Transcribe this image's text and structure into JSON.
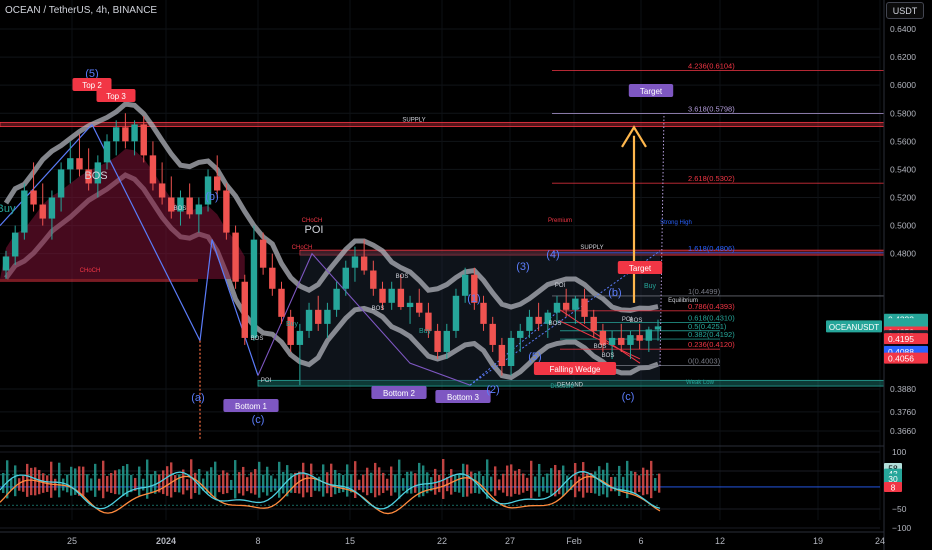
{
  "header": {
    "title": "OCEAN / TetherUS, 4h, BINANCE",
    "unit_button": "USDT"
  },
  "chart_data": {
    "type": "candlestick",
    "price_axis": {
      "ticks": [
        "0.6400",
        "0.6200",
        "0.6000",
        "0.5800",
        "0.5600",
        "0.5400",
        "0.5200",
        "0.5000",
        "0.4800",
        "0.3880",
        "0.3760",
        "0.3660"
      ],
      "range": [
        0.352,
        0.652
      ],
      "labels": [
        {
          "text": "0.4333",
          "value": 0.4333,
          "color": "#26a69a"
        },
        {
          "text": "0.4301",
          "value": 0.4301,
          "color": "#26a69a"
        },
        {
          "text": "0.4282",
          "value": 0.4282,
          "color": "#26a69a"
        },
        {
          "text": "01:04:55",
          "value": 0.4262,
          "color": "#26a69a"
        },
        {
          "text": "0.4252",
          "value": 0.4242,
          "color": "#f23645"
        },
        {
          "text": "0.4263",
          "value": 0.4216,
          "color": "#1e222d"
        },
        {
          "text": "0.4195",
          "value": 0.4195,
          "color": "#f23645"
        },
        {
          "text": "0.4088",
          "value": 0.4104,
          "color": "#2962ff"
        },
        {
          "text": "0.4056",
          "value": 0.4056,
          "color": "#f23645"
        }
      ],
      "symbol_tag": "OCEANUSDT"
    },
    "time_axis": {
      "labels": [
        "25",
        "2024",
        "8",
        "15",
        "22",
        "27",
        "Feb",
        "6",
        "12",
        "19",
        "24"
      ]
    },
    "candles": [
      {
        "x": 0.468,
        "o": 0.468,
        "h": 0.482,
        "l": 0.462,
        "c": 0.478
      },
      {
        "x": 0.478,
        "o": 0.478,
        "h": 0.5,
        "l": 0.472,
        "c": 0.495
      },
      {
        "x": 0.495,
        "o": 0.495,
        "h": 0.53,
        "l": 0.49,
        "c": 0.525
      },
      {
        "x": 0.525,
        "o": 0.525,
        "h": 0.545,
        "l": 0.51,
        "c": 0.515
      },
      {
        "x": 0.515,
        "o": 0.515,
        "h": 0.53,
        "l": 0.5,
        "c": 0.505
      },
      {
        "x": 0.505,
        "o": 0.505,
        "h": 0.525,
        "l": 0.49,
        "c": 0.52
      },
      {
        "x": 0.52,
        "o": 0.52,
        "h": 0.545,
        "l": 0.51,
        "c": 0.54
      },
      {
        "x": 0.54,
        "o": 0.54,
        "h": 0.56,
        "l": 0.53,
        "c": 0.548
      },
      {
        "x": 0.548,
        "o": 0.548,
        "h": 0.565,
        "l": 0.535,
        "c": 0.54
      },
      {
        "x": 0.54,
        "o": 0.54,
        "h": 0.555,
        "l": 0.525,
        "c": 0.53
      },
      {
        "x": 0.53,
        "o": 0.53,
        "h": 0.55,
        "l": 0.52,
        "c": 0.545
      },
      {
        "x": 0.545,
        "o": 0.545,
        "h": 0.565,
        "l": 0.54,
        "c": 0.56
      },
      {
        "x": 0.56,
        "o": 0.56,
        "h": 0.575,
        "l": 0.55,
        "c": 0.57
      },
      {
        "x": 0.57,
        "o": 0.57,
        "h": 0.58,
        "l": 0.555,
        "c": 0.56
      },
      {
        "x": 0.56,
        "o": 0.56,
        "h": 0.575,
        "l": 0.55,
        "c": 0.572
      },
      {
        "x": 0.572,
        "o": 0.572,
        "h": 0.578,
        "l": 0.545,
        "c": 0.55
      },
      {
        "x": 0.55,
        "o": 0.55,
        "h": 0.56,
        "l": 0.525,
        "c": 0.53
      },
      {
        "x": 0.53,
        "o": 0.53,
        "h": 0.545,
        "l": 0.515,
        "c": 0.52
      },
      {
        "x": 0.52,
        "o": 0.52,
        "h": 0.535,
        "l": 0.505,
        "c": 0.51
      },
      {
        "x": 0.51,
        "o": 0.51,
        "h": 0.525,
        "l": 0.5,
        "c": 0.52
      },
      {
        "x": 0.52,
        "o": 0.52,
        "h": 0.53,
        "l": 0.505,
        "c": 0.508
      },
      {
        "x": 0.508,
        "o": 0.508,
        "h": 0.52,
        "l": 0.495,
        "c": 0.515
      },
      {
        "x": 0.515,
        "o": 0.515,
        "h": 0.54,
        "l": 0.51,
        "c": 0.535
      },
      {
        "x": 0.535,
        "o": 0.535,
        "h": 0.55,
        "l": 0.52,
        "c": 0.525
      },
      {
        "x": 0.525,
        "o": 0.525,
        "h": 0.53,
        "l": 0.49,
        "c": 0.495
      },
      {
        "x": 0.495,
        "o": 0.495,
        "h": 0.5,
        "l": 0.455,
        "c": 0.46
      },
      {
        "x": 0.46,
        "o": 0.46,
        "h": 0.465,
        "l": 0.415,
        "c": 0.42
      },
      {
        "x": 0.42,
        "o": 0.42,
        "h": 0.5,
        "l": 0.418,
        "c": 0.49
      },
      {
        "x": 0.49,
        "o": 0.49,
        "h": 0.495,
        "l": 0.465,
        "c": 0.47
      },
      {
        "x": 0.47,
        "o": 0.47,
        "h": 0.48,
        "l": 0.45,
        "c": 0.455
      },
      {
        "x": 0.455,
        "o": 0.455,
        "h": 0.46,
        "l": 0.43,
        "c": 0.435
      },
      {
        "x": 0.435,
        "o": 0.435,
        "h": 0.44,
        "l": 0.41,
        "c": 0.415
      },
      {
        "x": 0.415,
        "o": 0.415,
        "h": 0.43,
        "l": 0.39,
        "c": 0.425
      },
      {
        "x": 0.425,
        "o": 0.425,
        "h": 0.445,
        "l": 0.42,
        "c": 0.44
      },
      {
        "x": 0.44,
        "o": 0.44,
        "h": 0.45,
        "l": 0.425,
        "c": 0.43
      },
      {
        "x": 0.43,
        "o": 0.43,
        "h": 0.445,
        "l": 0.42,
        "c": 0.44
      },
      {
        "x": 0.44,
        "o": 0.44,
        "h": 0.46,
        "l": 0.435,
        "c": 0.455
      },
      {
        "x": 0.455,
        "o": 0.455,
        "h": 0.475,
        "l": 0.45,
        "c": 0.47
      },
      {
        "x": 0.47,
        "o": 0.47,
        "h": 0.485,
        "l": 0.46,
        "c": 0.478
      },
      {
        "x": 0.478,
        "o": 0.478,
        "h": 0.49,
        "l": 0.465,
        "c": 0.468
      },
      {
        "x": 0.468,
        "o": 0.468,
        "h": 0.475,
        "l": 0.45,
        "c": 0.455
      },
      {
        "x": 0.455,
        "o": 0.455,
        "h": 0.46,
        "l": 0.44,
        "c": 0.445
      },
      {
        "x": 0.445,
        "o": 0.445,
        "h": 0.46,
        "l": 0.44,
        "c": 0.455
      },
      {
        "x": 0.455,
        "o": 0.455,
        "h": 0.465,
        "l": 0.44,
        "c": 0.442
      },
      {
        "x": 0.442,
        "o": 0.442,
        "h": 0.45,
        "l": 0.43,
        "c": 0.445
      },
      {
        "x": 0.445,
        "o": 0.445,
        "h": 0.455,
        "l": 0.435,
        "c": 0.438
      },
      {
        "x": 0.438,
        "o": 0.438,
        "h": 0.445,
        "l": 0.42,
        "c": 0.425
      },
      {
        "x": 0.425,
        "o": 0.425,
        "h": 0.43,
        "l": 0.405,
        "c": 0.41
      },
      {
        "x": 0.41,
        "o": 0.41,
        "h": 0.43,
        "l": 0.405,
        "c": 0.425
      },
      {
        "x": 0.425,
        "o": 0.425,
        "h": 0.455,
        "l": 0.42,
        "c": 0.45
      },
      {
        "x": 0.45,
        "o": 0.45,
        "h": 0.47,
        "l": 0.445,
        "c": 0.465
      },
      {
        "x": 0.465,
        "o": 0.465,
        "h": 0.47,
        "l": 0.44,
        "c": 0.445
      },
      {
        "x": 0.445,
        "o": 0.445,
        "h": 0.45,
        "l": 0.425,
        "c": 0.43
      },
      {
        "x": 0.43,
        "o": 0.43,
        "h": 0.435,
        "l": 0.41,
        "c": 0.415
      },
      {
        "x": 0.415,
        "o": 0.415,
        "h": 0.42,
        "l": 0.395,
        "c": 0.4
      },
      {
        "x": 0.4,
        "o": 0.4,
        "h": 0.425,
        "l": 0.395,
        "c": 0.42
      },
      {
        "x": 0.42,
        "o": 0.42,
        "h": 0.43,
        "l": 0.41,
        "c": 0.425
      },
      {
        "x": 0.425,
        "o": 0.425,
        "h": 0.44,
        "l": 0.42,
        "c": 0.435
      },
      {
        "x": 0.435,
        "o": 0.435,
        "h": 0.445,
        "l": 0.425,
        "c": 0.43
      },
      {
        "x": 0.43,
        "o": 0.43,
        "h": 0.44,
        "l": 0.42,
        "c": 0.438
      },
      {
        "x": 0.438,
        "o": 0.438,
        "h": 0.45,
        "l": 0.43,
        "c": 0.445
      },
      {
        "x": 0.445,
        "o": 0.445,
        "h": 0.455,
        "l": 0.435,
        "c": 0.44
      },
      {
        "x": 0.44,
        "o": 0.44,
        "h": 0.45,
        "l": 0.43,
        "c": 0.448
      },
      {
        "x": 0.448,
        "o": 0.448,
        "h": 0.455,
        "l": 0.43,
        "c": 0.435
      },
      {
        "x": 0.435,
        "o": 0.435,
        "h": 0.44,
        "l": 0.42,
        "c": 0.425
      },
      {
        "x": 0.425,
        "o": 0.425,
        "h": 0.43,
        "l": 0.41,
        "c": 0.415
      },
      {
        "x": 0.415,
        "o": 0.415,
        "h": 0.425,
        "l": 0.405,
        "c": 0.42
      },
      {
        "x": 0.42,
        "o": 0.42,
        "h": 0.43,
        "l": 0.41,
        "c": 0.415
      },
      {
        "x": 0.415,
        "o": 0.415,
        "h": 0.425,
        "l": 0.405,
        "c": 0.422
      },
      {
        "x": 0.422,
        "o": 0.422,
        "h": 0.43,
        "l": 0.412,
        "c": 0.418
      },
      {
        "x": 0.418,
        "o": 0.418,
        "h": 0.428,
        "l": 0.41,
        "c": 0.426
      },
      {
        "x": 0.426,
        "o": 0.426,
        "h": 0.433,
        "l": 0.418,
        "c": 0.4282
      }
    ],
    "resistance_lines": [
      {
        "label": "4.236(0.6104)",
        "value": 0.6104,
        "color": "#f23645"
      },
      {
        "label": "3.618(0.5798)",
        "value": 0.5798,
        "color": "#b39ddb"
      },
      {
        "label": "2.618(0.5302)",
        "value": 0.5302,
        "color": "#f23645"
      },
      {
        "label": "1.618(0.4806)",
        "value": 0.4806,
        "color": "#2962ff"
      },
      {
        "label": "1(0.4499)",
        "value": 0.4499,
        "color": "#787b86"
      },
      {
        "label": "0.786(0.4393)",
        "value": 0.4393,
        "color": "#f23645"
      },
      {
        "label": "0.618(0.4310)",
        "value": 0.431,
        "color": "#26a69a"
      },
      {
        "label": "0.5(0.4251)",
        "value": 0.4251,
        "color": "#26a69a"
      },
      {
        "label": "0.382(0.4192)",
        "value": 0.4192,
        "color": "#26a69a"
      },
      {
        "label": "0.236(0.4120)",
        "value": 0.412,
        "color": "#f23645"
      },
      {
        "label": "0(0.4003)",
        "value": 0.4003,
        "color": "#787b86"
      }
    ],
    "zones": [
      {
        "label": "SUPPLY",
        "top": 0.5735,
        "bottom": 0.5705,
        "color": "#f23645"
      },
      {
        "label": "SUPPLY",
        "top": 0.4825,
        "bottom": 0.479,
        "color": "#f23645"
      },
      {
        "label": "DEMAND",
        "top": 0.3925,
        "bottom": 0.3895,
        "color": "#26a69a"
      }
    ],
    "annotations": [
      {
        "text": "(5)",
        "color": "#5b7cfa"
      },
      {
        "text": "Top 2",
        "color": "#f23645",
        "box": true
      },
      {
        "text": "Top 3",
        "color": "#f23645",
        "box": true
      },
      {
        "text": "(b)",
        "color": "#5b7cfa"
      },
      {
        "text": "(a)",
        "color": "#5b7cfa"
      },
      {
        "text": "(c)",
        "color": "#5b7cfa"
      },
      {
        "text": "Bottom 1",
        "color": "#7e57c2",
        "box": true
      },
      {
        "text": "Bottom 2",
        "color": "#7e57c2",
        "box": true
      },
      {
        "text": "Bottom 3",
        "color": "#7e57c2",
        "box": true
      },
      {
        "text": "(1)",
        "color": "#5b7cfa"
      },
      {
        "text": "(2)",
        "color": "#5b7cfa"
      },
      {
        "text": "(3)",
        "color": "#5b7cfa"
      },
      {
        "text": "(4)",
        "color": "#5b7cfa"
      },
      {
        "text": "(5)",
        "color": "#5b7cfa"
      },
      {
        "text": "(b)",
        "color": "#5b7cfa"
      },
      {
        "text": "(c)",
        "color": "#5b7cfa"
      },
      {
        "text": "Target",
        "color": "#7e57c2",
        "box": true
      },
      {
        "text": "Target",
        "color": "#f23645",
        "box": true
      },
      {
        "text": "Falling Wedge",
        "color": "#f23645",
        "box": true
      },
      {
        "text": "BOS",
        "color": "#d1d4dc"
      },
      {
        "text": "CHoCH",
        "color": "#f23645"
      },
      {
        "text": "POI",
        "color": "#d1d4dc"
      },
      {
        "text": "Premium",
        "color": "#f23645"
      },
      {
        "text": "Strong High",
        "color": "#2962ff"
      },
      {
        "text": "Equilibrium",
        "color": "#d1d4dc"
      },
      {
        "text": "Discount",
        "color": "#26a69a"
      },
      {
        "text": "Weak Low",
        "color": "#26a69a"
      },
      {
        "text": "Buy",
        "color": "#26a69a"
      }
    ],
    "oscillator": {
      "range": [
        -100,
        100
      ],
      "ticks": [
        "100",
        "50",
        "−50",
        "−100"
      ],
      "labels": [
        {
          "text": "58",
          "value": 58,
          "color": "#b2dfdb"
        },
        {
          "text": "43",
          "value": 43,
          "color": "#26a69a"
        },
        {
          "text": "30",
          "value": 30,
          "color": "#26a69a"
        },
        {
          "text": "8",
          "value": 8,
          "color": "#f23645"
        }
      ]
    }
  }
}
